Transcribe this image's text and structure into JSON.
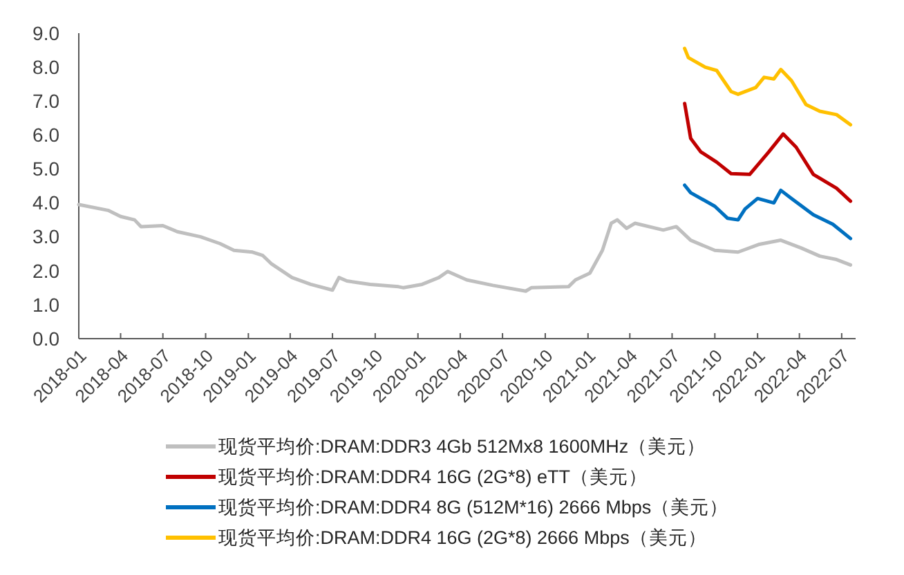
{
  "chart_data": {
    "type": "line",
    "xlim": [
      "2018-01-01",
      "2022-07-31"
    ],
    "xticks": [
      {
        "value": "2018-01",
        "label": "2018-01"
      },
      {
        "value": "2018-04",
        "label": "2018-04"
      },
      {
        "value": "2018-07",
        "label": "2018-07"
      },
      {
        "value": "2018-10",
        "label": "2018-10"
      },
      {
        "value": "2019-01",
        "label": "2019-01"
      },
      {
        "value": "2019-04",
        "label": "2019-04"
      },
      {
        "value": "2019-07",
        "label": "2019-07"
      },
      {
        "value": "2019-10",
        "label": "2019-10"
      },
      {
        "value": "2020-01",
        "label": "2020-01"
      },
      {
        "value": "2020-04",
        "label": "2020-04"
      },
      {
        "value": "2020-07",
        "label": "2020-07"
      },
      {
        "value": "2020-10",
        "label": "2020-10"
      },
      {
        "value": "2021-01",
        "label": "2021-01"
      },
      {
        "value": "2021-04",
        "label": "2021-04"
      },
      {
        "value": "2021-07",
        "label": "2021-07"
      },
      {
        "value": "2021-10",
        "label": "2021-10"
      },
      {
        "value": "2022-01",
        "label": "2022-01"
      },
      {
        "value": "2022-04",
        "label": "2022-04"
      },
      {
        "value": "2022-07",
        "label": "2022-07"
      }
    ],
    "ylim": [
      0,
      9
    ],
    "yticks": [
      {
        "value": 0,
        "label": "0.0"
      },
      {
        "value": 1,
        "label": "1.0"
      },
      {
        "value": 2,
        "label": "2.0"
      },
      {
        "value": 3,
        "label": "3.0"
      },
      {
        "value": 4,
        "label": "4.0"
      },
      {
        "value": 5,
        "label": "5.0"
      },
      {
        "value": 6,
        "label": "6.0"
      },
      {
        "value": 7,
        "label": "7.0"
      },
      {
        "value": 8,
        "label": "8.0"
      },
      {
        "value": 9,
        "label": "9.0"
      }
    ],
    "grid": false,
    "legend": "bottom",
    "line_style": "solid",
    "marker": "none",
    "series": [
      {
        "name": "现货平均价:DRAM:DDR3 4Gb 512Mx8 1600MHz（美元）",
        "color": "#bfbfbf",
        "x": [
          "2018-01-01",
          "2018-03-05",
          "2018-04-01",
          "2018-05-01",
          "2018-05-15",
          "2018-07-01",
          "2018-08-01",
          "2018-09-20",
          "2018-11-01",
          "2018-12-01",
          "2019-01-10",
          "2019-02-01",
          "2019-02-20",
          "2019-04-05",
          "2019-05-15",
          "2019-07-01",
          "2019-07-15",
          "2019-08-01",
          "2019-09-20",
          "2019-11-20",
          "2019-12-01",
          "2020-01-10",
          "2020-02-15",
          "2020-03-05",
          "2020-04-15",
          "2020-06-10",
          "2020-08-20",
          "2020-09-01",
          "2020-11-20",
          "2020-12-05",
          "2021-01-05",
          "2021-02-01",
          "2021-02-20",
          "2021-03-05",
          "2021-03-25",
          "2021-04-12",
          "2021-06-12",
          "2021-07-10",
          "2021-08-10",
          "2021-10-01",
          "2021-11-20",
          "2022-01-05",
          "2022-02-20",
          "2022-04-05",
          "2022-05-15",
          "2022-06-20",
          "2022-07-20"
        ],
        "values": [
          3.95,
          3.78,
          3.6,
          3.5,
          3.3,
          3.33,
          3.15,
          3.0,
          2.8,
          2.6,
          2.55,
          2.45,
          2.2,
          1.8,
          1.6,
          1.43,
          1.8,
          1.7,
          1.6,
          1.53,
          1.5,
          1.6,
          1.8,
          1.98,
          1.73,
          1.57,
          1.4,
          1.5,
          1.53,
          1.73,
          1.93,
          2.6,
          3.4,
          3.5,
          3.25,
          3.4,
          3.2,
          3.3,
          2.9,
          2.6,
          2.55,
          2.78,
          2.9,
          2.67,
          2.43,
          2.33,
          2.17
        ]
      },
      {
        "name": "现货平均价:DRAM:DDR4 16G (2G*8) eTT（美元）",
        "color": "#c00000",
        "x": [
          "2021-07-28",
          "2021-08-10",
          "2021-09-01",
          "2021-10-05",
          "2021-11-05",
          "2021-12-15",
          "2022-01-25",
          "2022-02-25",
          "2022-03-25",
          "2022-05-01",
          "2022-06-20",
          "2022-07-20"
        ],
        "values": [
          6.93,
          5.9,
          5.5,
          5.2,
          4.86,
          4.84,
          5.5,
          6.03,
          5.64,
          4.84,
          4.43,
          4.05
        ]
      },
      {
        "name": "现货平均价:DRAM:DDR4 8G (512M*16) 2666 Mbps（美元）",
        "color": "#0070c0",
        "x": [
          "2021-07-28",
          "2021-08-10",
          "2021-10-01",
          "2021-10-28",
          "2021-11-20",
          "2021-12-05",
          "2022-01-01",
          "2022-02-05",
          "2022-02-20",
          "2022-03-15",
          "2022-05-01",
          "2022-06-12",
          "2022-07-20"
        ],
        "values": [
          4.52,
          4.3,
          3.9,
          3.55,
          3.5,
          3.82,
          4.13,
          4.0,
          4.37,
          4.13,
          3.65,
          3.37,
          2.95
        ]
      },
      {
        "name": "现货平均价:DRAM:DDR4 16G (2G*8) 2666 Mbps（美元）",
        "color": "#ffc000",
        "x": [
          "2021-07-28",
          "2021-08-05",
          "2021-09-10",
          "2021-10-05",
          "2021-11-05",
          "2021-11-20",
          "2021-12-28",
          "2022-01-15",
          "2022-02-05",
          "2022-02-20",
          "2022-03-15",
          "2022-04-15",
          "2022-05-15",
          "2022-06-20",
          "2022-07-20"
        ],
        "values": [
          8.55,
          8.28,
          8.0,
          7.9,
          7.28,
          7.2,
          7.4,
          7.7,
          7.65,
          7.93,
          7.6,
          6.9,
          6.7,
          6.6,
          6.3
        ]
      }
    ]
  }
}
